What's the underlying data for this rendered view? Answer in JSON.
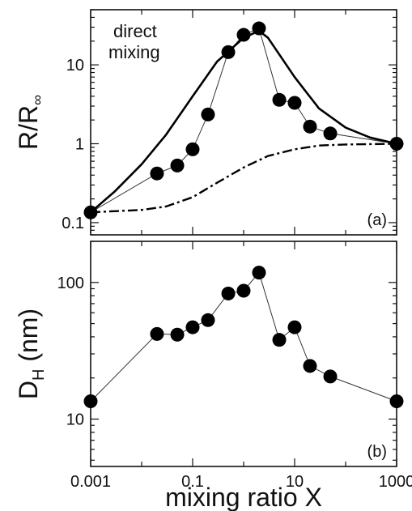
{
  "chart_data": [
    {
      "id": "a",
      "type": "line",
      "scale": "log-log",
      "xlim": [
        0.001,
        1000
      ],
      "ylim": [
        0.07,
        50
      ],
      "ylabel": "R/R∞",
      "ylabel_main": "R/R",
      "ylabel_sub": "∞",
      "annotation_line1": "direct",
      "annotation_line2": "mixing",
      "panel_label": "(a)",
      "y_ticks": [
        {
          "value": 0.1,
          "label": "0.1"
        },
        {
          "value": 1,
          "label": "1"
        },
        {
          "value": 10,
          "label": "10"
        }
      ],
      "series": [
        {
          "style": "markers-thin-line",
          "points": [
            {
              "x": 0.001,
              "y": 0.135
            },
            {
              "x": 0.02,
              "y": 0.42
            },
            {
              "x": 0.05,
              "y": 0.53
            },
            {
              "x": 0.1,
              "y": 0.85
            },
            {
              "x": 0.2,
              "y": 2.35
            },
            {
              "x": 0.5,
              "y": 14.5
            },
            {
              "x": 1,
              "y": 24
            },
            {
              "x": 2,
              "y": 29
            },
            {
              "x": 5,
              "y": 3.6
            },
            {
              "x": 10,
              "y": 3.3
            },
            {
              "x": 20,
              "y": 1.65
            },
            {
              "x": 50,
              "y": 1.35
            },
            {
              "x": 1000,
              "y": 1.0
            }
          ]
        },
        {
          "style": "thick-solid",
          "points": [
            {
              "x": 0.001,
              "y": 0.135
            },
            {
              "x": 0.003,
              "y": 0.25
            },
            {
              "x": 0.01,
              "y": 0.55
            },
            {
              "x": 0.03,
              "y": 1.3
            },
            {
              "x": 0.1,
              "y": 4.0
            },
            {
              "x": 0.3,
              "y": 11
            },
            {
              "x": 1,
              "y": 22
            },
            {
              "x": 2,
              "y": 27
            },
            {
              "x": 3,
              "y": 22
            },
            {
              "x": 10,
              "y": 7
            },
            {
              "x": 30,
              "y": 2.8
            },
            {
              "x": 100,
              "y": 1.6
            },
            {
              "x": 300,
              "y": 1.2
            },
            {
              "x": 1000,
              "y": 1.0
            }
          ]
        },
        {
          "style": "dash-dot",
          "points": [
            {
              "x": 0.001,
              "y": 0.135
            },
            {
              "x": 0.01,
              "y": 0.145
            },
            {
              "x": 0.03,
              "y": 0.16
            },
            {
              "x": 0.1,
              "y": 0.21
            },
            {
              "x": 0.3,
              "y": 0.32
            },
            {
              "x": 1,
              "y": 0.5
            },
            {
              "x": 3,
              "y": 0.7
            },
            {
              "x": 10,
              "y": 0.85
            },
            {
              "x": 30,
              "y": 0.95
            },
            {
              "x": 100,
              "y": 0.98
            },
            {
              "x": 1000,
              "y": 1.0
            }
          ]
        }
      ]
    },
    {
      "id": "b",
      "type": "line",
      "scale": "log-log",
      "xlim": [
        0.001,
        1000
      ],
      "ylim": [
        4.5,
        200
      ],
      "ylabel": "DH (nm)",
      "ylabel_main": "D",
      "ylabel_sub": "H",
      "ylabel_tail": " (nm)",
      "xlabel": "mixing ratio X",
      "panel_label": "(b)",
      "y_ticks": [
        {
          "value": 10,
          "label": "10"
        },
        {
          "value": 100,
          "label": "100"
        }
      ],
      "x_ticks": [
        {
          "value": 0.001,
          "label": "0.001"
        },
        {
          "value": 0.1,
          "label": "0.1"
        },
        {
          "value": 10,
          "label": "10"
        },
        {
          "value": 1000,
          "label": "1000"
        }
      ],
      "series": [
        {
          "style": "markers-thin-line",
          "points": [
            {
              "x": 0.001,
              "y": 13.5
            },
            {
              "x": 0.02,
              "y": 42
            },
            {
              "x": 0.05,
              "y": 41.5
            },
            {
              "x": 0.1,
              "y": 47
            },
            {
              "x": 0.2,
              "y": 53
            },
            {
              "x": 0.5,
              "y": 83
            },
            {
              "x": 1,
              "y": 87
            },
            {
              "x": 2,
              "y": 118
            },
            {
              "x": 5,
              "y": 38
            },
            {
              "x": 10,
              "y": 47
            },
            {
              "x": 20,
              "y": 24.5
            },
            {
              "x": 50,
              "y": 20.5
            },
            {
              "x": 1000,
              "y": 13.5
            }
          ]
        }
      ]
    }
  ]
}
